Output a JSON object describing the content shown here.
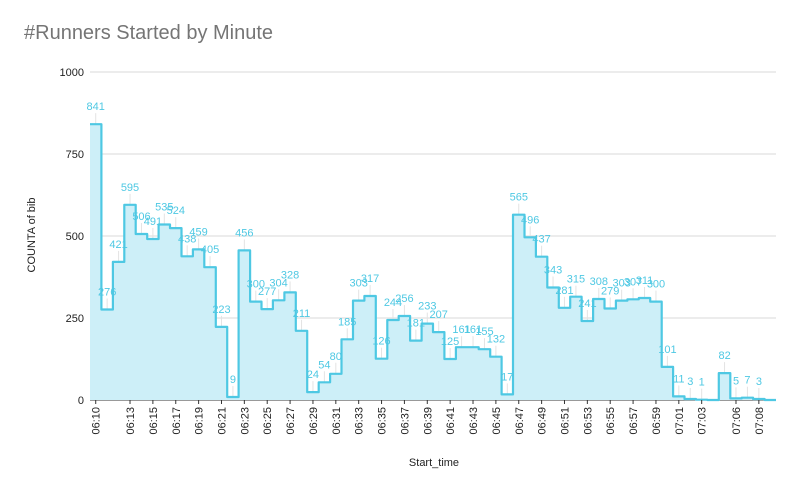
{
  "chart_data": {
    "type": "area",
    "title": "#Runners Started by Minute",
    "xlabel": "Start_time",
    "ylabel": "COUNTA of bib",
    "ylim": [
      0,
      1000
    ],
    "yticks": [
      0,
      250,
      500,
      750,
      1000
    ],
    "ytick_labels": [
      "0",
      "250",
      "500",
      "750",
      "1000"
    ],
    "step": true,
    "grid": true,
    "colors": {
      "line": "#4ec8e3",
      "fill": "#cdeff8",
      "label": "#4ec8e3"
    },
    "x": [
      "06:10",
      "06:11",
      "06:12",
      "06:13",
      "06:14",
      "06:15",
      "06:16",
      "06:17",
      "06:18",
      "06:19",
      "06:20",
      "06:21",
      "06:22",
      "06:23",
      "06:24",
      "06:25",
      "06:26",
      "06:27",
      "06:28",
      "06:29",
      "06:30",
      "06:31",
      "06:32",
      "06:33",
      "06:34",
      "06:35",
      "06:36",
      "06:37",
      "06:38",
      "06:39",
      "06:40",
      "06:41",
      "06:42",
      "06:43",
      "06:44",
      "06:45",
      "06:46",
      "06:47",
      "06:48",
      "06:49",
      "06:50",
      "06:51",
      "06:52",
      "06:53",
      "06:54",
      "06:55",
      "06:56",
      "06:57",
      "06:58",
      "06:59",
      "07:00",
      "07:01",
      "07:02",
      "07:03",
      "07:04",
      "07:05",
      "07:06",
      "07:07",
      "07:08",
      "07:09"
    ],
    "xtick_labels": [
      "06:10",
      "06:13",
      "06:15",
      "06:17",
      "06:19",
      "06:21",
      "06:23",
      "06:25",
      "06:27",
      "06:29",
      "06:31",
      "06:33",
      "06:35",
      "06:37",
      "06:39",
      "06:41",
      "06:43",
      "06:45",
      "06:47",
      "06:49",
      "06:51",
      "06:53",
      "06:55",
      "06:57",
      "06:59",
      "07:01",
      "07:03",
      "07:06",
      "07:08"
    ],
    "values": [
      841,
      276,
      421,
      595,
      506,
      491,
      535,
      524,
      438,
      459,
      405,
      223,
      9,
      456,
      300,
      277,
      304,
      328,
      211,
      24,
      54,
      80,
      185,
      303,
      317,
      126,
      244,
      256,
      181,
      233,
      207,
      125,
      161,
      161,
      155,
      132,
      17,
      565,
      496,
      437,
      343,
      281,
      315,
      241,
      308,
      279,
      303,
      307,
      311,
      300,
      101,
      11,
      3,
      1,
      0,
      82,
      5,
      7,
      3,
      0
    ],
    "data_labels": [
      "841",
      "276",
      "421",
      "595",
      "506",
      "491",
      "535",
      "524",
      "438",
      "459",
      "405",
      "223",
      "9",
      "456",
      "300",
      "277",
      "304",
      "328",
      "211",
      "24",
      "54",
      "80",
      "185",
      "303",
      "317",
      "126",
      "244",
      "256",
      "181",
      "233",
      "207",
      "125",
      "161",
      "161",
      "155",
      "132",
      "17",
      "565",
      "496",
      "437",
      "343",
      "281",
      "315",
      "241",
      "308",
      "279",
      "303",
      "307",
      "311",
      "300",
      "101",
      "11",
      "3",
      "1",
      "",
      "82",
      "5",
      "7",
      "3",
      ""
    ]
  }
}
